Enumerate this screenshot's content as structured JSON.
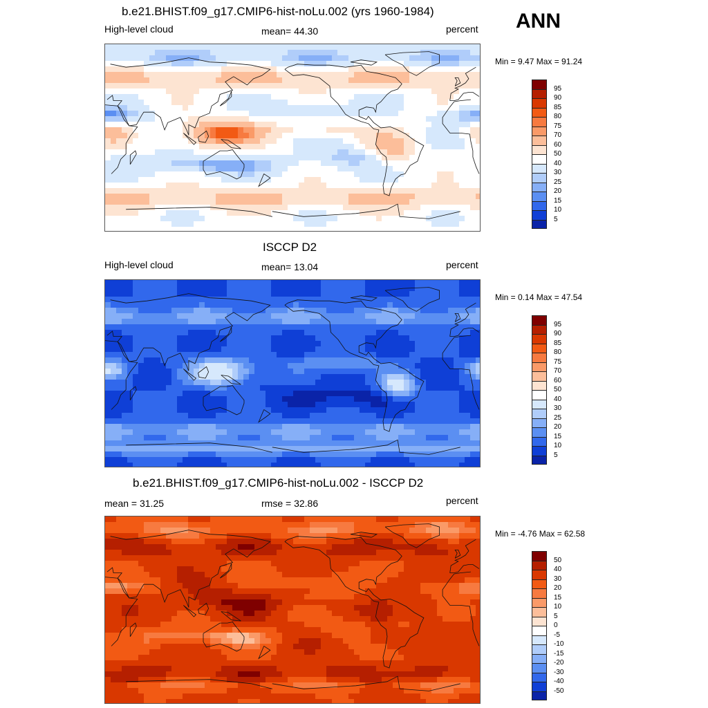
{
  "season": "ANN",
  "panels": [
    {
      "title": "b.e21.BHIST.f09_g17.CMIP6-hist-noLu.002 (yrs 1960-1984)",
      "left": "High-level cloud",
      "center": "mean=  44.30",
      "right": "percent",
      "minmax": "Min =   9.47 Max =  91.24",
      "palette": "cloud",
      "field": "model"
    },
    {
      "title": "ISCCP D2",
      "left": "High-level cloud",
      "center": "mean=  13.04",
      "right": "percent",
      "minmax": "Min =   0.14 Max =  47.54",
      "palette": "cloud",
      "field": "obs"
    },
    {
      "title": "b.e21.BHIST.f09_g17.CMIP6-hist-noLu.002 - ISCCP D2",
      "left": "mean =  31.25",
      "center": "rmse =  32.86",
      "right": "percent",
      "minmax": "Min =  -4.76 Max =  62.58",
      "palette": "diff",
      "field": "diff"
    }
  ],
  "colorbars": {
    "cloud": {
      "labels": [
        "95",
        "90",
        "85",
        "80",
        "75",
        "70",
        "60",
        "50",
        "40",
        "30",
        "25",
        "20",
        "15",
        "10",
        "5"
      ],
      "colors": [
        "#7f0000",
        "#b51f00",
        "#d93800",
        "#f25a14",
        "#f77a40",
        "#fa9a68",
        "#fcbe9a",
        "#fde4d2",
        "#ffffff",
        "#d6e8fc",
        "#b0cdfa",
        "#86aff7",
        "#5b8ff2",
        "#3168ec",
        "#0f3fd6",
        "#0a23a8"
      ]
    },
    "diff": {
      "labels": [
        "50",
        "40",
        "30",
        "20",
        "15",
        "10",
        "5",
        "0",
        "-5",
        "-10",
        "-15",
        "-20",
        "-30",
        "-40",
        "-50"
      ],
      "colors": [
        "#7f0000",
        "#b51f00",
        "#d93800",
        "#f25a14",
        "#f77a40",
        "#fa9a68",
        "#fcbe9a",
        "#fde4d2",
        "#ffffff",
        "#d6e8fc",
        "#b0cdfa",
        "#86aff7",
        "#5b8ff2",
        "#3168ec",
        "#0f3fd6",
        "#0a23a8"
      ]
    }
  }
}
